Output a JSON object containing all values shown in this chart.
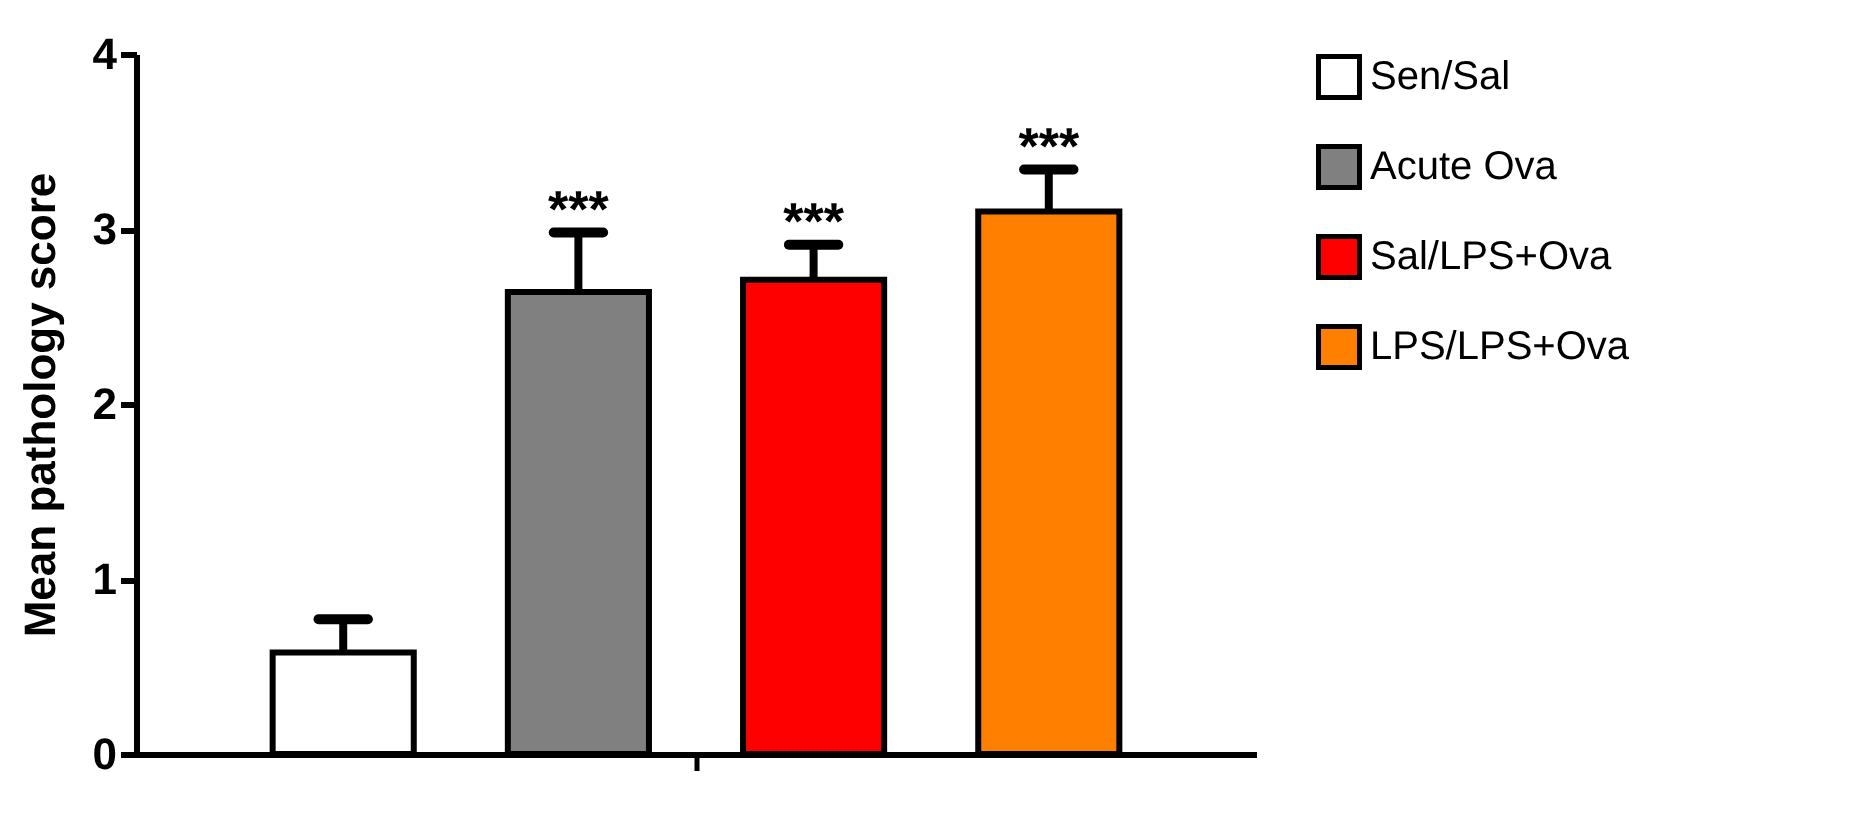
{
  "chart_data": {
    "type": "bar",
    "ylabel": "Mean pathology score",
    "categories": [
      null
    ],
    "series": [
      {
        "name": "Sen/Sal",
        "color": "#ffffff",
        "values": [
          0.58
        ],
        "errors": [
          [
            0.58,
            0.77
          ]
        ]
      },
      {
        "name": "Acute Ova",
        "color": "#808080",
        "values": [
          2.64
        ],
        "errors": [
          [
            2.64,
            2.98
          ]
        ]
      },
      {
        "name": "Sal/LPS+Ova",
        "color": "#ff0000",
        "values": [
          2.71
        ],
        "errors": [
          [
            2.71,
            2.91
          ]
        ]
      },
      {
        "name": "LPS/LPS+Ova",
        "color": "#ff8000",
        "values": [
          3.1
        ],
        "errors": [
          [
            3.1,
            3.34
          ]
        ]
      }
    ],
    "annotations": [
      "***",
      "***",
      "***"
    ],
    "ylim": [
      0,
      4
    ],
    "yticks": [
      0,
      1,
      2,
      3,
      4
    ],
    "grid": false,
    "legend": "right"
  }
}
